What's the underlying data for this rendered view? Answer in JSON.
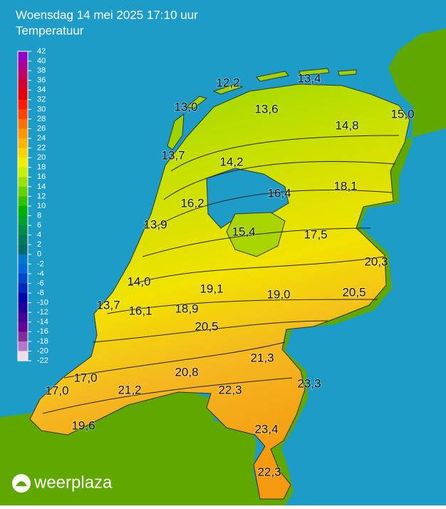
{
  "header": {
    "title": "Woensdag 14 mei 2025 17:10 uur",
    "subtitle": "Temperatuur"
  },
  "legend": {
    "ticks": [
      42,
      40,
      38,
      36,
      34,
      32,
      30,
      28,
      26,
      24,
      22,
      20,
      18,
      16,
      14,
      12,
      10,
      8,
      6,
      4,
      2,
      0,
      -2,
      -4,
      -6,
      -8,
      -10,
      -12,
      -14,
      -16,
      -18,
      -20,
      -22
    ],
    "colors": [
      "#9400c8",
      "#b0008f",
      "#c40060",
      "#d4002e",
      "#e80000",
      "#ff1a00",
      "#ff4400",
      "#ff7000",
      "#ff9600",
      "#ffb400",
      "#ffd200",
      "#f0ee00",
      "#c8ee00",
      "#9ae000",
      "#66d000",
      "#33c000",
      "#00b000",
      "#00a030",
      "#008c48",
      "#007a5a",
      "#006a6a",
      "#0078c8",
      "#0066d8",
      "#0048c8",
      "#0028b8",
      "#0008a8",
      "#200098",
      "#420098",
      "#640098",
      "#882a9a",
      "#b47ac8",
      "#eedcee"
    ]
  },
  "stations": [
    "12,2",
    "13,4",
    "13,0",
    "13,6",
    "15,0",
    "14,8",
    "13,7",
    "14,2",
    "16,4",
    "18,1",
    "16,2",
    "13,9",
    "15,4",
    "17,5",
    "20,3",
    "14,0",
    "19,1",
    "19,0",
    "20,5",
    "13,7",
    "16,1",
    "18,9",
    "20,5",
    "21,3",
    "17,0",
    "20,8",
    "23,3",
    "17,0",
    "21,2",
    "22,3",
    "23,4",
    "19,6",
    "22,3"
  ],
  "logo": "weerplaza"
}
